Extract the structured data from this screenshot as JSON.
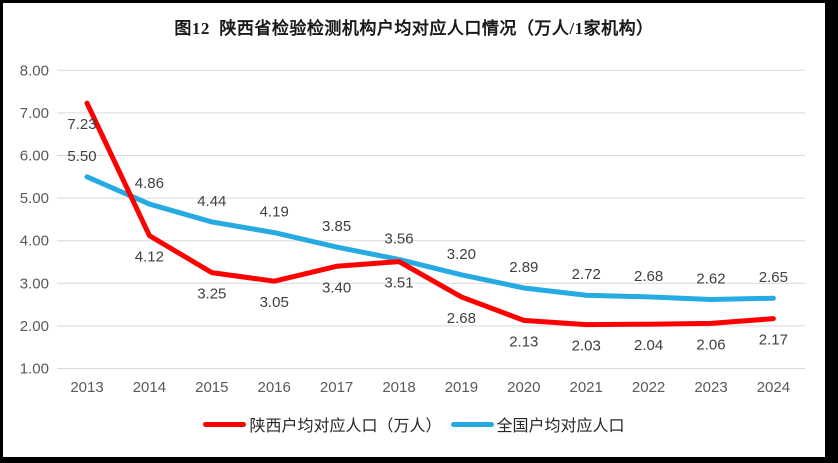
{
  "title": "图12  陕西省检验检测机构户均对应人口情况（万人/1家机构）",
  "chart_data": {
    "type": "line",
    "title": "图12  陕西省检验检测机构户均对应人口情况（万人/1家机构）",
    "categories": [
      "2013",
      "2014",
      "2015",
      "2016",
      "2017",
      "2018",
      "2019",
      "2020",
      "2021",
      "2022",
      "2023",
      "2024"
    ],
    "series": [
      {
        "name": "陕西户均对应人口（万人）",
        "color": "#fe0000",
        "values": [
          7.23,
          4.12,
          3.25,
          3.05,
          3.4,
          3.51,
          2.68,
          2.13,
          2.03,
          2.04,
          2.06,
          2.17
        ],
        "label_position": "below"
      },
      {
        "name": "全国户均对应人口",
        "color": "#25aae1",
        "values": [
          5.5,
          4.86,
          4.44,
          4.19,
          3.85,
          3.56,
          3.2,
          2.89,
          2.72,
          2.68,
          2.62,
          2.65
        ],
        "label_position": "above"
      }
    ],
    "ylim": [
      1,
      8
    ],
    "y_tick_step": 1,
    "y_tick_labels": [
      "1.00",
      "2.00",
      "3.00",
      "4.00",
      "5.00",
      "6.00",
      "7.00",
      "8.00"
    ],
    "grid": true,
    "gridline_color": "#d9d9d9",
    "axis_text_color": "#595959",
    "data_label_color": "#404040",
    "data_label_decimals": 2,
    "legend_position": "bottom"
  },
  "legend": {
    "items": [
      {
        "label": "陕西户均对应人口（万人）",
        "color": "#fe0000"
      },
      {
        "label": "全国户均对应人口",
        "color": "#25aae1"
      }
    ]
  }
}
